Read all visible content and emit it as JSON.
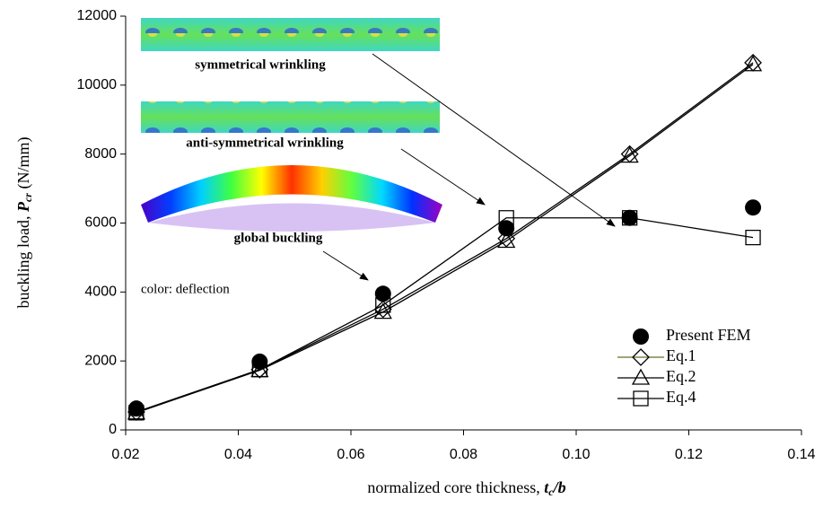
{
  "chart_data": {
    "type": "line",
    "x_label": {
      "text": "normalized core thickness, ",
      "symbol": "t",
      "subscript": "c",
      "rest": "/b"
    },
    "y_label": {
      "text": "buckling load, ",
      "symbol": "P",
      "subscript": "cr",
      "unit": " (N/mm)"
    },
    "x": [
      0.0219,
      0.0438,
      0.0657,
      0.0876,
      0.1095,
      0.1314
    ],
    "series": [
      {
        "name": "Present FEM",
        "color": "#000000",
        "marker": "circle",
        "line": false,
        "values": [
          620,
          1980,
          3950,
          5850,
          6150,
          6450
        ]
      },
      {
        "name": "Eq.1",
        "color": "#000000",
        "line_color": "#6b6b2a",
        "marker": "diamond",
        "line": true,
        "values": [
          520,
          1750,
          3500,
          5550,
          8000,
          10650
        ]
      },
      {
        "name": "Eq.2",
        "color": "#000000",
        "marker": "triangle",
        "line": true,
        "values": [
          500,
          1730,
          3420,
          5480,
          7950,
          10600
        ]
      },
      {
        "name": "Eq.4",
        "color": "#000000",
        "marker": "square",
        "line": true,
        "values": [
          500,
          1750,
          3620,
          6150,
          6150,
          5580
        ]
      }
    ],
    "xlim": [
      0.02,
      0.14
    ],
    "xticks": [
      0.02,
      0.04,
      0.06,
      0.08,
      {
        "value": 0.1,
        "label": "0.10"
      },
      0.12,
      0.14
    ],
    "ylim": [
      0,
      12000
    ],
    "yticks": [
      0,
      2000,
      4000,
      6000,
      8000,
      10000,
      12000
    ],
    "grid": false,
    "legend": "lower right",
    "annotations": [
      "symmetrical wrinkling",
      "anti-symmetrical wrinkling",
      "global buckling",
      "color: deflection"
    ]
  }
}
